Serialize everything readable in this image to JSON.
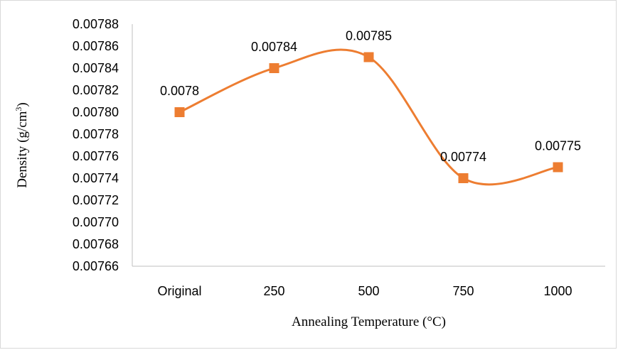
{
  "chart_data": {
    "type": "line",
    "smooth": true,
    "grid": false,
    "legend": "none",
    "title": "",
    "categories": [
      "Original",
      "250",
      "500",
      "750",
      "1000"
    ],
    "series": [
      {
        "values": [
          0.0078,
          0.00784,
          0.00785,
          0.00774,
          0.00775
        ],
        "data_labels": [
          "0.0078",
          "0.00784",
          "0.00785",
          "0.00774",
          "0.00775"
        ],
        "color": "#ed7d31",
        "marker": "square"
      }
    ],
    "xlabel": "Annealing Temperature (°C)",
    "ylabel": {
      "text": "Density (g/cm",
      "superscript": "3",
      "suffix": ")"
    },
    "ylim": [
      0.00766,
      0.00788
    ],
    "y_ticks": [
      "0.00766",
      "0.00768",
      "0.00770",
      "0.00772",
      "0.00774",
      "0.00776",
      "0.00778",
      "0.00780",
      "0.00782",
      "0.00784",
      "0.00786",
      "0.00788"
    ],
    "axis_color": "#bfbfbf"
  }
}
